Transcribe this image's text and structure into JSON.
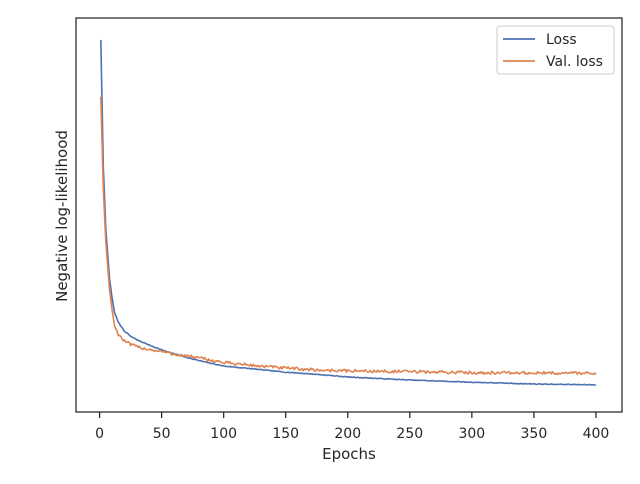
{
  "chart_data": {
    "type": "line",
    "title": "",
    "xlabel": "Epochs",
    "ylabel": "Negative log-likelihood",
    "xlim": [
      -19,
      421
    ],
    "ylim": [
      -0.5,
      8.5
    ],
    "x_ticks": [
      0,
      50,
      100,
      150,
      200,
      250,
      300,
      350,
      400
    ],
    "y_ticks_shown": false,
    "grid": false,
    "legend_position": "top-right",
    "series": [
      {
        "name": "Loss",
        "color": "#4c72b0",
        "x": [
          1,
          3,
          5,
          8,
          10,
          12,
          15,
          20,
          25,
          30,
          40,
          50,
          60,
          75,
          90,
          100,
          125,
          150,
          175,
          200,
          250,
          300,
          350,
          400
        ],
        "y": [
          8.0,
          5.1,
          3.7,
          2.55,
          2.12,
          1.78,
          1.55,
          1.35,
          1.23,
          1.15,
          1.03,
          0.92,
          0.83,
          0.71,
          0.61,
          0.55,
          0.48,
          0.41,
          0.36,
          0.3,
          0.23,
          0.18,
          0.14,
          0.12
        ]
      },
      {
        "name": "Val. loss",
        "color": "#dd8452",
        "x": [
          1,
          3,
          5,
          8,
          10,
          12,
          15,
          20,
          25,
          30,
          40,
          50,
          60,
          75,
          90,
          100,
          125,
          150,
          175,
          200,
          250,
          300,
          350,
          400
        ],
        "y": [
          6.7,
          4.6,
          3.4,
          2.3,
          1.85,
          1.48,
          1.28,
          1.12,
          1.04,
          0.99,
          0.93,
          0.88,
          0.82,
          0.76,
          0.68,
          0.63,
          0.56,
          0.5,
          0.46,
          0.44,
          0.42,
          0.4,
          0.39,
          0.39
        ]
      }
    ]
  }
}
